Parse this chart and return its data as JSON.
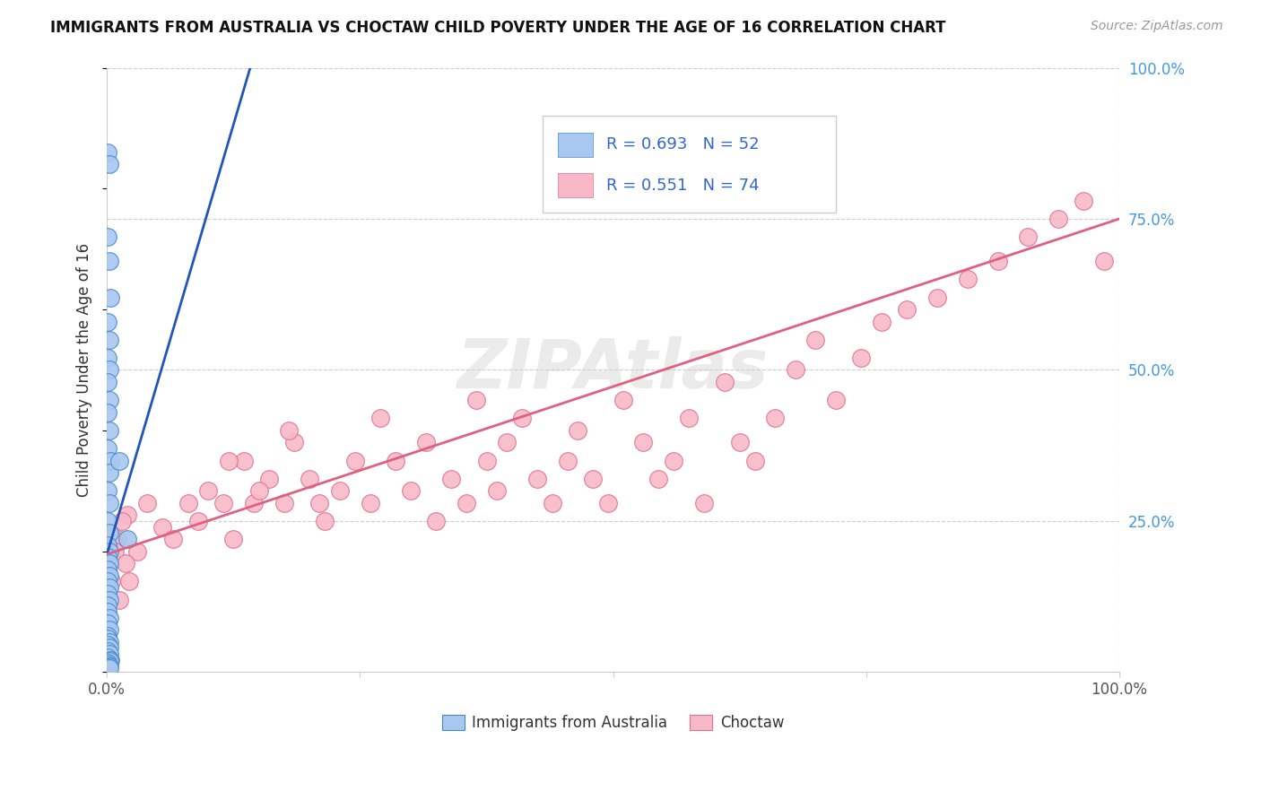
{
  "title": "IMMIGRANTS FROM AUSTRALIA VS CHOCTAW CHILD POVERTY UNDER THE AGE OF 16 CORRELATION CHART",
  "source": "Source: ZipAtlas.com",
  "ylabel": "Child Poverty Under the Age of 16",
  "xlim": [
    0,
    1
  ],
  "ylim": [
    0,
    1
  ],
  "watermark": "ZIPAtlas",
  "legend_r1": "R = 0.693",
  "legend_n1": "N = 52",
  "legend_r2": "R = 0.551",
  "legend_n2": "N = 74",
  "color_blue_fill": "#A8C8F0",
  "color_blue_edge": "#4488CC",
  "color_pink_fill": "#F8B8C8",
  "color_pink_edge": "#E07090",
  "color_blue_line": "#2255BB",
  "color_pink_line": "#E06080",
  "grid_color": "#CCCCCC",
  "blue_scatter_x": [
    0.001,
    0.002,
    0.001,
    0.002,
    0.003,
    0.001,
    0.002,
    0.001,
    0.002,
    0.001,
    0.002,
    0.001,
    0.002,
    0.001,
    0.003,
    0.002,
    0.001,
    0.002,
    0.001,
    0.002,
    0.001,
    0.002,
    0.001,
    0.002,
    0.001,
    0.002,
    0.001,
    0.002,
    0.001,
    0.002,
    0.001,
    0.001,
    0.002,
    0.001,
    0.002,
    0.001,
    0.001,
    0.002,
    0.001,
    0.002,
    0.001,
    0.002,
    0.001,
    0.003,
    0.002,
    0.001,
    0.001,
    0.002,
    0.001,
    0.002,
    0.012,
    0.02
  ],
  "blue_scatter_y": [
    0.86,
    0.84,
    0.72,
    0.68,
    0.62,
    0.58,
    0.55,
    0.52,
    0.5,
    0.48,
    0.45,
    0.43,
    0.4,
    0.37,
    0.35,
    0.33,
    0.3,
    0.28,
    0.25,
    0.23,
    0.21,
    0.2,
    0.19,
    0.18,
    0.17,
    0.16,
    0.15,
    0.14,
    0.13,
    0.12,
    0.11,
    0.1,
    0.09,
    0.08,
    0.07,
    0.06,
    0.055,
    0.05,
    0.045,
    0.04,
    0.035,
    0.03,
    0.025,
    0.02,
    0.018,
    0.015,
    0.012,
    0.01,
    0.008,
    0.006,
    0.35,
    0.22
  ],
  "pink_scatter_x": [
    0.01,
    0.02,
    0.03,
    0.04,
    0.055,
    0.065,
    0.08,
    0.09,
    0.1,
    0.115,
    0.125,
    0.135,
    0.145,
    0.16,
    0.175,
    0.185,
    0.2,
    0.215,
    0.23,
    0.245,
    0.26,
    0.27,
    0.285,
    0.3,
    0.315,
    0.325,
    0.34,
    0.355,
    0.365,
    0.375,
    0.385,
    0.395,
    0.41,
    0.425,
    0.44,
    0.455,
    0.465,
    0.48,
    0.495,
    0.51,
    0.53,
    0.545,
    0.56,
    0.575,
    0.59,
    0.61,
    0.625,
    0.64,
    0.66,
    0.68,
    0.7,
    0.72,
    0.745,
    0.765,
    0.79,
    0.82,
    0.85,
    0.88,
    0.91,
    0.94,
    0.965,
    0.985,
    0.002,
    0.004,
    0.006,
    0.008,
    0.012,
    0.015,
    0.018,
    0.022,
    0.12,
    0.15,
    0.18,
    0.21
  ],
  "pink_scatter_y": [
    0.22,
    0.26,
    0.2,
    0.28,
    0.24,
    0.22,
    0.28,
    0.25,
    0.3,
    0.28,
    0.22,
    0.35,
    0.28,
    0.32,
    0.28,
    0.38,
    0.32,
    0.25,
    0.3,
    0.35,
    0.28,
    0.42,
    0.35,
    0.3,
    0.38,
    0.25,
    0.32,
    0.28,
    0.45,
    0.35,
    0.3,
    0.38,
    0.42,
    0.32,
    0.28,
    0.35,
    0.4,
    0.32,
    0.28,
    0.45,
    0.38,
    0.32,
    0.35,
    0.42,
    0.28,
    0.48,
    0.38,
    0.35,
    0.42,
    0.5,
    0.55,
    0.45,
    0.52,
    0.58,
    0.6,
    0.62,
    0.65,
    0.68,
    0.72,
    0.75,
    0.78,
    0.68,
    0.18,
    0.15,
    0.22,
    0.2,
    0.12,
    0.25,
    0.18,
    0.15,
    0.35,
    0.3,
    0.4,
    0.28
  ],
  "blue_trend_x": [
    0.0,
    0.145
  ],
  "blue_trend_y": [
    0.195,
    1.02
  ],
  "pink_trend_x": [
    0.0,
    1.0
  ],
  "pink_trend_y": [
    0.195,
    0.75
  ]
}
